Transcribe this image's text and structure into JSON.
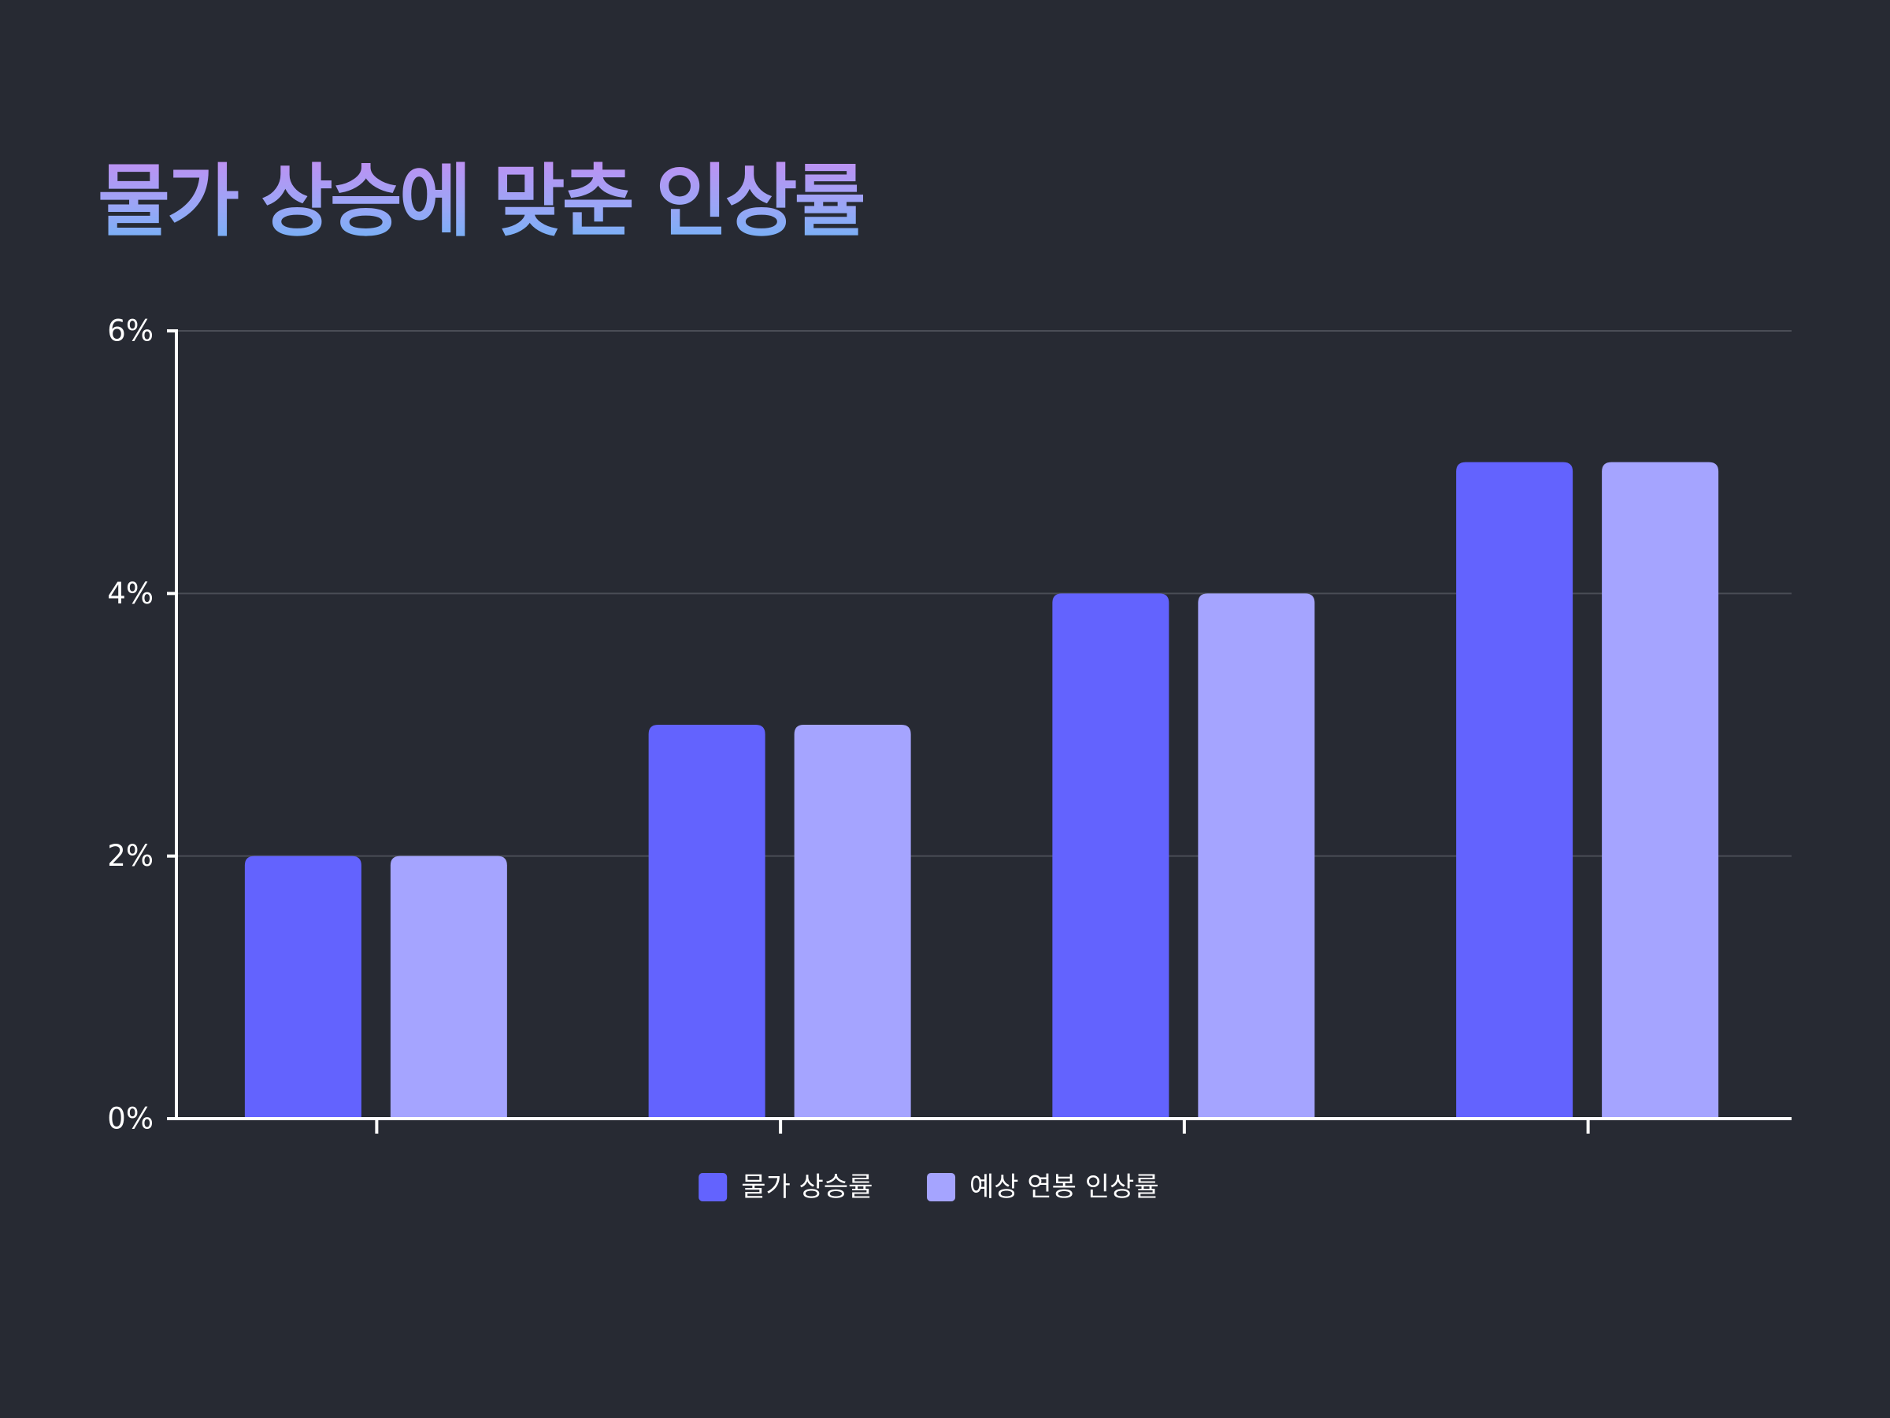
{
  "colors": {
    "background": "#272a33",
    "series_1": "#6363fe",
    "series_2": "#a5a4ff",
    "axis": "#ffffff",
    "grid": "#4a4d56",
    "title_gradient_top": "#c28ef2",
    "title_gradient_bottom": "#6fb2f5"
  },
  "chart_data": {
    "type": "bar",
    "title": "물가 상승에 맞춘 인상률",
    "categories": [
      "",
      "",
      "",
      ""
    ],
    "series": [
      {
        "name": "물가 상승률",
        "values": [
          2,
          3,
          4,
          5
        ],
        "color": "#6363fe"
      },
      {
        "name": "예상 연봉 인상률",
        "values": [
          2,
          3,
          4,
          5
        ],
        "color": "#a5a4ff"
      }
    ],
    "yticks": [
      "0%",
      "2%",
      "4%",
      "6%"
    ],
    "ylim": [
      0,
      6
    ],
    "xlabel": "",
    "ylabel": "",
    "grid": true,
    "legend": "bottom-center"
  }
}
